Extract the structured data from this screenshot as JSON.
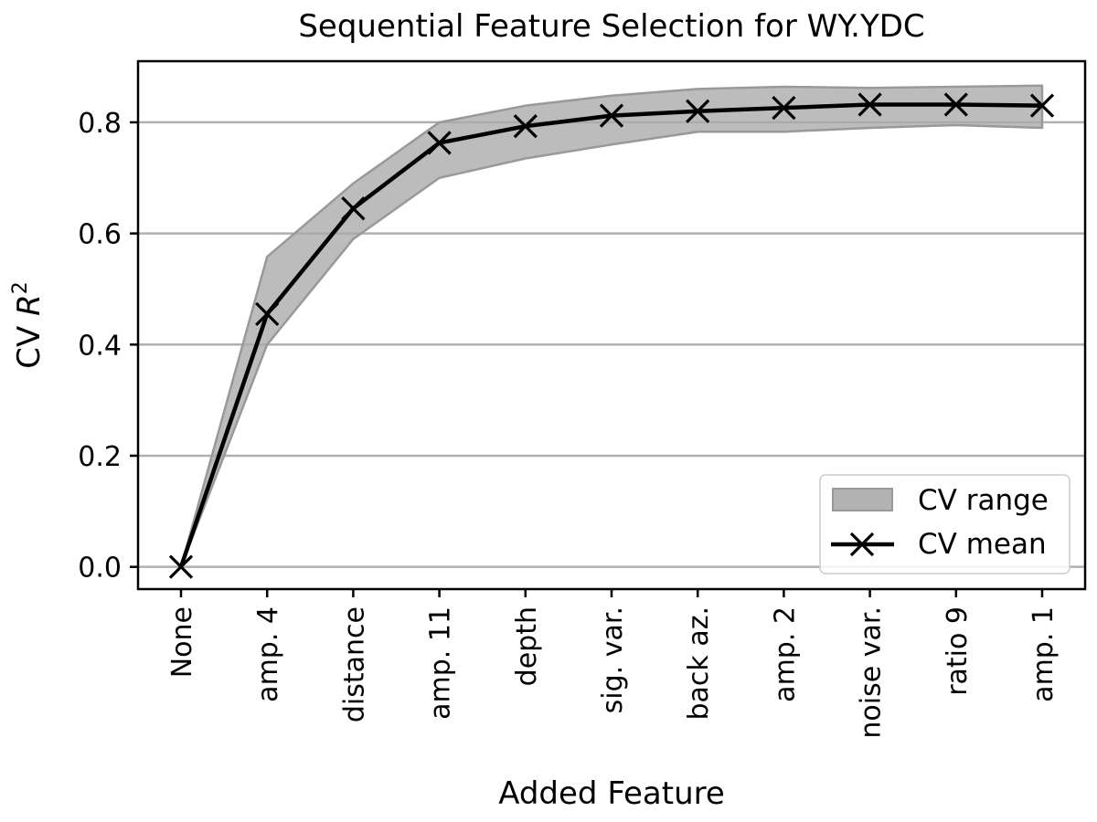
{
  "chart_data": {
    "type": "line",
    "title": "Sequential Feature Selection for WY.YDC",
    "xlabel": "Added Feature",
    "ylabel_prefix": "CV ",
    "ylabel_var": "R",
    "ylabel_sup": "2",
    "categories": [
      "None",
      "amp. 4",
      "distance",
      "amp. 11",
      "depth",
      "sig. var.",
      "back az.",
      "amp. 2",
      "noise var.",
      "ratio 9",
      "amp. 1"
    ],
    "ylim": [
      -0.04,
      0.91
    ],
    "yticks": [
      0.0,
      0.2,
      0.4,
      0.6,
      0.8
    ],
    "ytick_labels": [
      "0.0",
      "0.2",
      "0.4",
      "0.6",
      "0.8"
    ],
    "grid": "y",
    "legend_position": "lower-right",
    "series": [
      {
        "name": "CV mean",
        "kind": "line",
        "marker": "x",
        "color": "#000000",
        "values": [
          0.0,
          0.455,
          0.645,
          0.763,
          0.793,
          0.812,
          0.82,
          0.826,
          0.832,
          0.832,
          0.83
        ]
      },
      {
        "name": "CV range",
        "kind": "band",
        "color": "#a9a9a9",
        "upper": [
          0.0,
          0.558,
          0.69,
          0.8,
          0.83,
          0.848,
          0.86,
          0.864,
          0.862,
          0.864,
          0.866
        ],
        "lower": [
          0.0,
          0.4,
          0.59,
          0.7,
          0.735,
          0.76,
          0.783,
          0.783,
          0.79,
          0.795,
          0.79
        ]
      }
    ],
    "legend": [
      {
        "label": "CV range"
      },
      {
        "label": "CV mean"
      }
    ]
  }
}
